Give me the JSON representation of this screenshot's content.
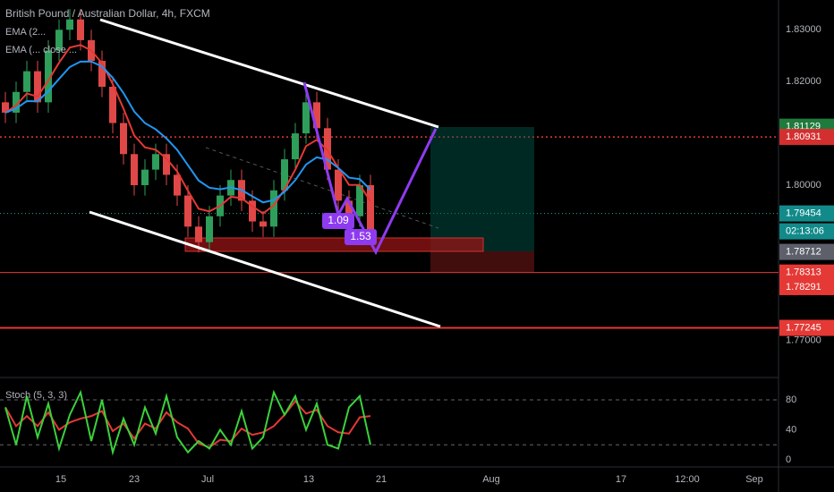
{
  "header": {
    "title": "British Pound / Australian Dollar, 4h, FXCM",
    "indicator_1": "EMA (2...",
    "indicator_2": "EMA (... close ..."
  },
  "price_axis": {
    "ticks": [
      {
        "value": 1.83,
        "label": "1.83000"
      },
      {
        "value": 1.82,
        "label": "1.82000"
      },
      {
        "value": 1.8,
        "label": "1.80000"
      },
      {
        "value": 1.77,
        "label": "1.77000"
      }
    ]
  },
  "price_tags": [
    {
      "value": 1.81129,
      "color": "#1f7a3c"
    },
    {
      "value": 1.80931,
      "color": "#d32f2f"
    },
    {
      "value": 1.79454,
      "color": "#138a8a"
    },
    {
      "value": 1.78712,
      "color": "#5d606b"
    },
    {
      "value": 1.78313,
      "color": "#e53935"
    },
    {
      "value": 1.78291,
      "color": "#e53935"
    },
    {
      "value": 1.77245,
      "color": "#e53935"
    }
  ],
  "countdown": "02:13:06",
  "closes": [
    1.814,
    1.818,
    1.822,
    1.816,
    1.826,
    1.83,
    1.832,
    1.828,
    1.824,
    1.819,
    1.812,
    1.806,
    1.8,
    1.803,
    1.806,
    1.802,
    1.798,
    1.792,
    1.789,
    1.794,
    1.798,
    1.801,
    1.797,
    1.793,
    1.792,
    1.799,
    1.805,
    1.81,
    1.816,
    1.811,
    1.803,
    1.797,
    1.794,
    1.8,
    1.791
  ],
  "annotations": [
    "1.09",
    "1.53"
  ],
  "stoch": {
    "title": "Stoch (5, 3, 3)",
    "ticks": [
      80,
      40,
      0
    ],
    "bands": [
      80,
      20
    ],
    "values": [
      70,
      20,
      85,
      30,
      75,
      15,
      60,
      90,
      25,
      80,
      10,
      55,
      20,
      70,
      35,
      85,
      30,
      10,
      25,
      15,
      40,
      20,
      65,
      15,
      30,
      90,
      60,
      85,
      40,
      75,
      20,
      15,
      70,
      85,
      20
    ]
  },
  "time_axis": [
    "15",
    "23",
    "Jul",
    "13",
    "21",
    "Aug",
    "17",
    "12:00",
    "Sep"
  ]
}
